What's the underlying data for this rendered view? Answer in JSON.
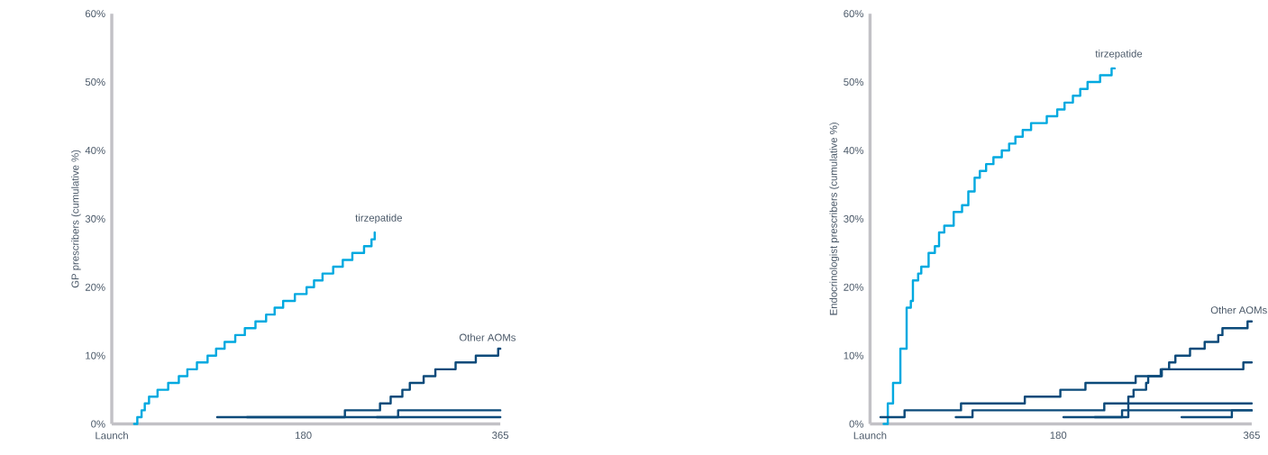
{
  "chart_data": [
    {
      "type": "step",
      "ylabel": "GP prescribers (cumulative %)",
      "xlim": [
        0,
        365
      ],
      "ylim": [
        0,
        60
      ],
      "xticks": [
        {
          "value": 0,
          "label": "Launch"
        },
        180,
        365
      ],
      "yticks": [
        {
          "value": 0,
          "label": "0%"
        },
        {
          "value": 10,
          "label": "10%"
        },
        {
          "value": 20,
          "label": "20%"
        },
        {
          "value": 30,
          "label": "30%"
        },
        {
          "value": 40,
          "label": "40%"
        },
        {
          "value": 50,
          "label": "50%"
        },
        {
          "value": 60,
          "label": "60%"
        }
      ],
      "series": [
        {
          "name": "tirzepatide",
          "color": "#00a9e0",
          "x": [
            21,
            24,
            28,
            31,
            35,
            43,
            53,
            63,
            71,
            80,
            90,
            98,
            106,
            116,
            125,
            135,
            145,
            153,
            161,
            172,
            183,
            190,
            198,
            208,
            217,
            226,
            237,
            244,
            247
          ],
          "values": [
            0,
            1,
            2,
            3,
            4,
            5,
            6,
            7,
            8,
            9,
            10,
            11,
            12,
            13,
            14,
            15,
            16,
            17,
            18,
            19,
            20,
            21,
            22,
            23,
            24,
            25,
            26,
            27,
            28
          ]
        },
        {
          "name": "Other AOMs",
          "color": "#0b4a7a",
          "x": [
            99,
            219,
            252,
            262,
            273,
            280,
            293,
            304,
            323,
            342,
            363,
            365
          ],
          "values": [
            1,
            2,
            3,
            4,
            5,
            6,
            7,
            8,
            9,
            10,
            11,
            11
          ]
        },
        {
          "color": "#0b4a7a",
          "x": [
            127,
            269,
            365
          ],
          "values": [
            1,
            2,
            2
          ]
        },
        {
          "color": "#0b4a7a",
          "x": [
            249,
            365
          ],
          "values": [
            1,
            1
          ]
        }
      ]
    },
    {
      "type": "step",
      "ylabel": "Endocrinologist prescribers (cumulative %)",
      "xlim": [
        0,
        365
      ],
      "ylim": [
        0,
        60
      ],
      "xticks": [
        {
          "value": 0,
          "label": "Launch"
        },
        180,
        365
      ],
      "yticks": [
        {
          "value": 0,
          "label": "0%"
        },
        {
          "value": 10,
          "label": "10%"
        },
        {
          "value": 20,
          "label": "20%"
        },
        {
          "value": 30,
          "label": "30%"
        },
        {
          "value": 40,
          "label": "40%"
        },
        {
          "value": 50,
          "label": "50%"
        },
        {
          "value": 60,
          "label": "60%"
        }
      ],
      "series": [
        {
          "name": "tirzepatide",
          "color": "#00a9e0",
          "x": [
            13,
            17,
            22,
            29,
            35,
            39,
            41,
            46,
            49,
            56,
            62,
            66,
            71,
            80,
            88,
            94,
            100,
            105,
            111,
            118,
            126,
            133,
            139,
            146,
            154,
            169,
            179,
            186,
            194,
            201,
            208,
            220,
            231,
            234
          ],
          "values": [
            0,
            3,
            6,
            11,
            17,
            18,
            21,
            22,
            23,
            25,
            26,
            28,
            29,
            31,
            32,
            34,
            36,
            37,
            38,
            39,
            40,
            41,
            42,
            43,
            44,
            45,
            46,
            47,
            48,
            49,
            50,
            51,
            52,
            52
          ]
        },
        {
          "name": "Other AOMs",
          "color": "#0b4a7a",
          "x": [
            215,
            247,
            252,
            264,
            266,
            279,
            286,
            292,
            306,
            320,
            333,
            337,
            361,
            365
          ],
          "values": [
            1,
            4,
            5,
            6,
            7,
            8,
            9,
            10,
            11,
            12,
            13,
            14,
            15,
            15
          ]
        },
        {
          "color": "#0b4a7a",
          "x": [
            10,
            33,
            87,
            148,
            182,
            206,
            254,
            278,
            357,
            365
          ],
          "values": [
            1,
            2,
            3,
            4,
            5,
            6,
            7,
            8,
            9,
            9
          ]
        },
        {
          "color": "#0b4a7a",
          "x": [
            82,
            98,
            224,
            365
          ],
          "values": [
            1,
            2,
            3,
            3
          ]
        },
        {
          "color": "#0b4a7a",
          "x": [
            185,
            241,
            365
          ],
          "values": [
            1,
            2,
            2
          ]
        },
        {
          "color": "#0b4a7a",
          "x": [
            298,
            346,
            365
          ],
          "values": [
            1,
            2,
            2
          ]
        }
      ]
    }
  ]
}
